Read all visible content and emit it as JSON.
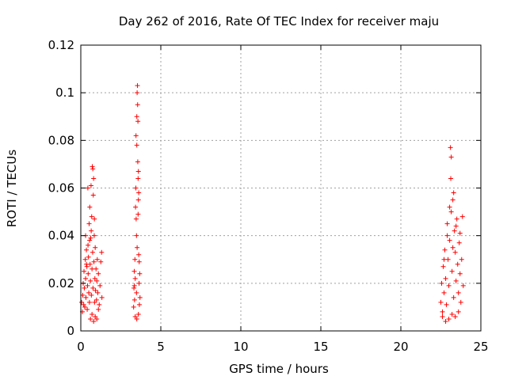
{
  "chart_data": {
    "type": "scatter",
    "title": "Day 262 of 2016, Rate Of TEC Index for receiver maju",
    "xlabel": "GPS time / hours",
    "ylabel": "ROTI / TECUs",
    "xlim": [
      0,
      25
    ],
    "ylim": [
      0,
      0.12
    ],
    "x_ticks": [
      "0",
      "5",
      "10",
      "15",
      "20",
      "25"
    ],
    "y_ticks": [
      "0",
      "0.02",
      "0.04",
      "0.06",
      "0.08",
      "0.1",
      "0.12"
    ],
    "grid": true,
    "marker": "+",
    "color": "#ff0000",
    "series": [
      {
        "name": "ROTI",
        "points": [
          [
            0.05,
            0.012
          ],
          [
            0.1,
            0.008
          ],
          [
            0.12,
            0.015
          ],
          [
            0.15,
            0.02
          ],
          [
            0.18,
            0.011
          ],
          [
            0.2,
            0.025
          ],
          [
            0.22,
            0.018
          ],
          [
            0.25,
            0.01
          ],
          [
            0.28,
            0.03
          ],
          [
            0.3,
            0.022
          ],
          [
            0.32,
            0.014
          ],
          [
            0.35,
            0.034
          ],
          [
            0.38,
            0.027
          ],
          [
            0.4,
            0.009
          ],
          [
            0.42,
            0.019
          ],
          [
            0.44,
            0.06
          ],
          [
            0.46,
            0.024
          ],
          [
            0.48,
            0.031
          ],
          [
            0.5,
            0.016
          ],
          [
            0.52,
            0.045
          ],
          [
            0.54,
            0.012
          ],
          [
            0.56,
            0.052
          ],
          [
            0.58,
            0.028
          ],
          [
            0.6,
            0.021
          ],
          [
            0.62,
            0.039
          ],
          [
            0.64,
            0.061
          ],
          [
            0.66,
            0.015
          ],
          [
            0.68,
            0.048
          ],
          [
            0.7,
            0.026
          ],
          [
            0.72,
            0.069
          ],
          [
            0.74,
            0.033
          ],
          [
            0.76,
            0.018
          ],
          [
            0.78,
            0.057
          ],
          [
            0.8,
            0.064
          ],
          [
            0.82,
            0.029
          ],
          [
            0.84,
            0.04
          ],
          [
            0.86,
            0.012
          ],
          [
            0.88,
            0.022
          ],
          [
            0.9,
            0.035
          ],
          [
            0.92,
            0.017
          ],
          [
            0.95,
            0.026
          ],
          [
            0.98,
            0.013
          ],
          [
            1.0,
            0.021
          ],
          [
            1.03,
            0.03
          ],
          [
            1.06,
            0.016
          ],
          [
            1.1,
            0.024
          ],
          [
            1.15,
            0.011
          ],
          [
            1.2,
            0.019
          ],
          [
            1.25,
            0.029
          ],
          [
            1.3,
            0.033
          ],
          [
            1.32,
            0.014
          ],
          [
            0.6,
            0.005
          ],
          [
            0.7,
            0.007
          ],
          [
            0.8,
            0.004
          ],
          [
            0.9,
            0.006
          ],
          [
            1.0,
            0.005
          ],
          [
            1.1,
            0.009
          ],
          [
            0.55,
            0.038
          ],
          [
            0.65,
            0.042
          ],
          [
            0.75,
            0.068
          ],
          [
            0.85,
            0.047
          ],
          [
            0.45,
            0.036
          ],
          [
            0.35,
            0.028
          ],
          [
            0.3,
            0.04
          ],
          [
            3.3,
            0.01
          ],
          [
            3.32,
            0.018
          ],
          [
            3.34,
            0.025
          ],
          [
            3.36,
            0.013
          ],
          [
            3.38,
            0.03
          ],
          [
            3.4,
            0.022
          ],
          [
            3.42,
            0.052
          ],
          [
            3.44,
            0.06
          ],
          [
            3.46,
            0.047
          ],
          [
            3.48,
            0.016
          ],
          [
            3.5,
            0.09
          ],
          [
            3.52,
            0.1
          ],
          [
            3.54,
            0.103
          ],
          [
            3.56,
            0.071
          ],
          [
            3.58,
            0.064
          ],
          [
            3.6,
            0.055
          ],
          [
            3.62,
            0.032
          ],
          [
            3.64,
            0.02
          ],
          [
            3.66,
            0.011
          ],
          [
            3.68,
            0.024
          ],
          [
            3.7,
            0.014
          ],
          [
            3.45,
            0.082
          ],
          [
            3.5,
            0.078
          ],
          [
            3.55,
            0.095
          ],
          [
            3.57,
            0.088
          ],
          [
            3.6,
            0.067
          ],
          [
            3.48,
            0.04
          ],
          [
            3.52,
            0.035
          ],
          [
            3.4,
            0.006
          ],
          [
            3.5,
            0.005
          ],
          [
            3.6,
            0.007
          ],
          [
            3.65,
            0.029
          ],
          [
            3.35,
            0.019
          ],
          [
            3.58,
            0.049
          ],
          [
            3.62,
            0.058
          ],
          [
            22.5,
            0.012
          ],
          [
            22.55,
            0.02
          ],
          [
            22.6,
            0.008
          ],
          [
            22.65,
            0.027
          ],
          [
            22.7,
            0.016
          ],
          [
            22.75,
            0.034
          ],
          [
            22.8,
            0.022
          ],
          [
            22.85,
            0.011
          ],
          [
            22.9,
            0.045
          ],
          [
            22.95,
            0.03
          ],
          [
            23.0,
            0.019
          ],
          [
            23.05,
            0.038
          ],
          [
            23.1,
            0.077
          ],
          [
            23.12,
            0.064
          ],
          [
            23.15,
            0.05
          ],
          [
            23.2,
            0.025
          ],
          [
            23.25,
            0.055
          ],
          [
            23.3,
            0.014
          ],
          [
            23.35,
            0.042
          ],
          [
            23.4,
            0.033
          ],
          [
            23.45,
            0.021
          ],
          [
            23.5,
            0.047
          ],
          [
            23.55,
            0.028
          ],
          [
            23.6,
            0.016
          ],
          [
            23.65,
            0.037
          ],
          [
            23.7,
            0.024
          ],
          [
            23.75,
            0.012
          ],
          [
            23.8,
            0.03
          ],
          [
            23.85,
            0.048
          ],
          [
            23.9,
            0.019
          ],
          [
            22.6,
            0.006
          ],
          [
            22.8,
            0.004
          ],
          [
            23.0,
            0.005
          ],
          [
            23.2,
            0.007
          ],
          [
            23.4,
            0.006
          ],
          [
            23.6,
            0.008
          ],
          [
            22.9,
            0.04
          ],
          [
            23.15,
            0.073
          ],
          [
            23.3,
            0.058
          ],
          [
            23.05,
            0.052
          ],
          [
            23.45,
            0.044
          ],
          [
            23.25,
            0.035
          ],
          [
            22.7,
            0.03
          ],
          [
            23.7,
            0.041
          ]
        ]
      }
    ]
  }
}
